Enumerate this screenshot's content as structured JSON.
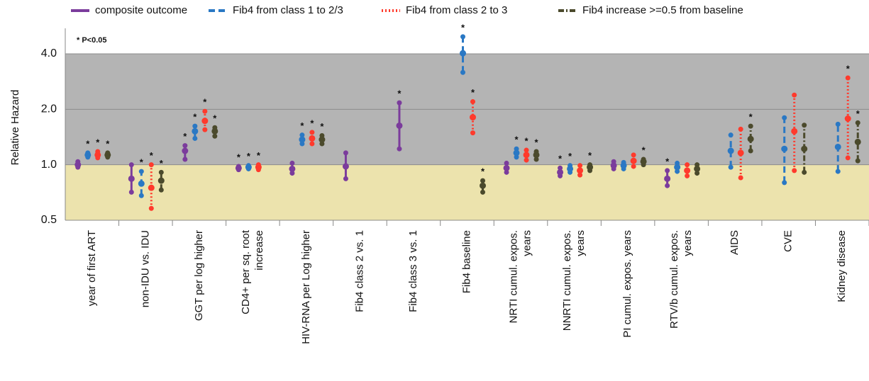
{
  "chart_data": {
    "type": "forest",
    "y_label": "Relative Hazard",
    "annotation": "* P<0.05",
    "star_label": "*",
    "log_scale": true,
    "ylim": [
      0.5,
      5.5
    ],
    "yticks": [
      {
        "value": 0.5,
        "label": "0.5"
      },
      {
        "value": 1,
        "label": "1.0"
      },
      {
        "value": 2,
        "label": "2.0"
      },
      {
        "value": 4,
        "label": "4.0"
      }
    ],
    "grid": true,
    "shading": [
      {
        "from": 1,
        "to": 4,
        "color": "#b4b4b4"
      },
      {
        "from": 0.5,
        "to": 1,
        "color": "#ece3ad"
      }
    ],
    "categories": [
      "year of first ART",
      "non-IDU vs. IDU",
      "GGT per log higher",
      "CD4+ per sq. root\nincrease",
      "HIV-RNA per Log higher",
      "Fib4 class 2 vs. 1",
      "Fib4 class 3 vs. 1",
      "Fib4 baseline",
      "NRTI cumul. expos.\nyears",
      "NNRTI cumul. expos.\nyears",
      "PI cumul. expos. years",
      "RTV/b cumul. expos.\nyears",
      "AIDS",
      "CVE",
      "Kidney disease"
    ],
    "series": [
      {
        "name": "composite outcome",
        "color": "#7b3c9c",
        "dash": "solid",
        "values": [
          1.0,
          0.84,
          1.19,
          0.96,
          0.95,
          0.98,
          1.63,
          null,
          0.96,
          0.91,
          0.99,
          0.84,
          null,
          null,
          null
        ],
        "lower": [
          0.97,
          0.71,
          1.07,
          0.94,
          0.9,
          0.84,
          1.22,
          null,
          0.91,
          0.87,
          0.95,
          0.77,
          null,
          null,
          null
        ],
        "upper": [
          1.04,
          1.0,
          1.27,
          0.98,
          1.02,
          1.16,
          2.17,
          null,
          1.02,
          0.96,
          1.04,
          0.93,
          null,
          null,
          null
        ],
        "significant": [
          false,
          false,
          true,
          true,
          false,
          false,
          true,
          false,
          false,
          true,
          false,
          true,
          false,
          false,
          false
        ]
      },
      {
        "name": "Fib4 from class 1 to 2/3",
        "color": "#2a78c4",
        "dash": "dashed",
        "values": [
          1.13,
          0.79,
          1.52,
          0.97,
          1.37,
          null,
          null,
          4.03,
          1.16,
          0.95,
          0.99,
          0.97,
          1.19,
          1.22,
          1.25
        ],
        "lower": [
          1.1,
          0.68,
          1.39,
          0.95,
          1.3,
          null,
          null,
          3.17,
          1.1,
          0.91,
          0.95,
          0.92,
          0.97,
          0.8,
          0.92
        ],
        "upper": [
          1.16,
          0.92,
          1.62,
          0.99,
          1.45,
          null,
          null,
          4.95,
          1.22,
          0.99,
          1.03,
          1.02,
          1.45,
          1.8,
          1.66
        ],
        "significant": [
          true,
          true,
          true,
          true,
          true,
          false,
          false,
          true,
          true,
          true,
          false,
          false,
          false,
          false,
          false
        ]
      },
      {
        "name": "Fib4 from class 2 to 3",
        "color": "#ff3a2c",
        "dash": "dotted",
        "values": [
          1.13,
          0.75,
          1.73,
          0.97,
          1.39,
          null,
          null,
          1.81,
          1.13,
          0.93,
          1.05,
          0.93,
          1.16,
          1.52,
          1.78
        ],
        "lower": [
          1.09,
          0.58,
          1.55,
          0.94,
          1.3,
          null,
          null,
          1.49,
          1.06,
          0.88,
          0.98,
          0.87,
          0.85,
          0.93,
          1.09
        ],
        "upper": [
          1.18,
          1.0,
          1.95,
          1.0,
          1.5,
          null,
          null,
          2.2,
          1.2,
          0.99,
          1.13,
          1.0,
          1.56,
          2.39,
          2.96
        ],
        "significant": [
          true,
          true,
          true,
          true,
          true,
          false,
          false,
          true,
          true,
          false,
          false,
          false,
          false,
          false,
          true
        ]
      },
      {
        "name": "Fib4 increase >=0.5 from baseline",
        "color": "#4b4a2c",
        "dash": "dashdot",
        "values": [
          1.13,
          0.82,
          1.52,
          null,
          1.37,
          null,
          null,
          0.77,
          1.13,
          0.97,
          1.04,
          0.95,
          1.38,
          1.22,
          1.33
        ],
        "lower": [
          1.1,
          0.73,
          1.43,
          null,
          1.3,
          null,
          null,
          0.71,
          1.07,
          0.93,
          1.0,
          0.9,
          1.19,
          0.91,
          1.05
        ],
        "upper": [
          1.16,
          0.91,
          1.59,
          null,
          1.44,
          null,
          null,
          0.82,
          1.18,
          1.0,
          1.07,
          1.0,
          1.62,
          1.64,
          1.69
        ],
        "significant": [
          true,
          true,
          true,
          false,
          true,
          false,
          false,
          true,
          true,
          true,
          true,
          false,
          true,
          false,
          true
        ]
      }
    ]
  }
}
